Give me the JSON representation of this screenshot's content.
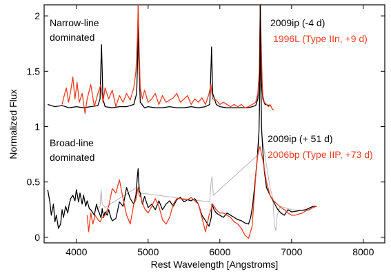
{
  "chart_data": {
    "type": "line",
    "title": "",
    "xlabel": "Rest Wavelength [Angstroms]",
    "ylabel": "Normalized Flux",
    "xlim": [
      3550,
      8300
    ],
    "ylim": [
      -0.05,
      2.1
    ],
    "xticks": [
      4000,
      5000,
      6000,
      7000,
      8000
    ],
    "yticks": [
      0,
      0.5,
      1,
      1.5,
      2
    ],
    "ytick_labels": [
      "0",
      "0.5",
      "1",
      "1.5",
      "2"
    ],
    "grid": false,
    "colors": {
      "black": "#000000",
      "red": "#ee3b1f",
      "gray": "#b5b5b5"
    },
    "annotations": [
      {
        "id": "narrow",
        "lines": [
          "Narrow-line",
          "dominated"
        ],
        "color": "#000000"
      },
      {
        "id": "broad",
        "lines": [
          "Broad-line",
          "dominated"
        ],
        "color": "#000000"
      },
      {
        "id": "top-black",
        "lines": [
          "2009ip (-4 d)"
        ],
        "color": "#000000"
      },
      {
        "id": "top-red",
        "lines": [
          "1996L (Type IIn, +9 d)"
        ],
        "color": "#ee3b1f"
      },
      {
        "id": "bot-black",
        "lines": [
          "2009ip (+ 51 d)"
        ],
        "color": "#000000"
      },
      {
        "id": "bot-red",
        "lines": [
          "2006bp (Type IIP, +73 d)"
        ],
        "color": "#ee3b1f"
      }
    ],
    "series": [
      {
        "color": "#000000",
        "x": [
          3600,
          3700,
          3800,
          3900,
          4000,
          4100,
          4200,
          4300,
          4330,
          4340,
          4350,
          4370,
          4400,
          4500,
          4600,
          4700,
          4800,
          4840,
          4855,
          4862,
          4870,
          4890,
          4950,
          5000,
          5100,
          5200,
          5300,
          5400,
          5500,
          5600,
          5700,
          5800,
          5860,
          5875,
          5885,
          5900,
          5950,
          6000,
          6100,
          6200,
          6300,
          6400,
          6500,
          6530,
          6550,
          6560,
          6563,
          6568,
          6580,
          6600,
          6630,
          6700
        ],
        "y": [
          1.2,
          1.18,
          1.19,
          1.17,
          1.18,
          1.17,
          1.18,
          1.19,
          1.25,
          1.52,
          1.74,
          1.25,
          1.18,
          1.17,
          1.18,
          1.18,
          1.2,
          1.3,
          1.65,
          2.1,
          1.6,
          1.22,
          1.17,
          1.18,
          1.17,
          1.17,
          1.18,
          1.17,
          1.17,
          1.18,
          1.17,
          1.18,
          1.2,
          1.5,
          1.72,
          1.3,
          1.2,
          1.18,
          1.17,
          1.17,
          1.17,
          1.17,
          1.19,
          1.25,
          1.45,
          1.75,
          2.1,
          1.9,
          1.4,
          1.25,
          1.2,
          1.19
        ]
      },
      {
        "color": "#ee3b1f",
        "x": [
          3800,
          3830,
          3860,
          3890,
          3920,
          3950,
          3980,
          4010,
          4040,
          4080,
          4120,
          4150,
          4200,
          4250,
          4300,
          4340,
          4370,
          4400,
          4450,
          4500,
          4550,
          4600,
          4650,
          4700,
          4750,
          4800,
          4830,
          4850,
          4862,
          4875,
          4890,
          4920,
          4950,
          5000,
          5050,
          5100,
          5150,
          5200,
          5250,
          5300,
          5350,
          5400,
          5450,
          5500,
          5550,
          5600,
          5650,
          5700,
          5750,
          5800,
          5850,
          5875,
          5885,
          5900,
          5950,
          6000,
          6050,
          6100,
          6150,
          6200,
          6250,
          6300,
          6350,
          6400,
          6450,
          6500,
          6530,
          6550,
          6563,
          6575,
          6590,
          6600,
          6620,
          6650,
          6680,
          6700,
          6730,
          6750
        ],
        "y": [
          1.2,
          1.28,
          1.35,
          1.22,
          1.32,
          1.45,
          1.25,
          1.4,
          1.22,
          1.3,
          1.12,
          1.25,
          1.38,
          1.18,
          1.3,
          1.38,
          1.22,
          1.35,
          1.25,
          1.33,
          1.18,
          1.28,
          1.22,
          1.3,
          1.24,
          1.35,
          1.5,
          1.8,
          2.1,
          1.7,
          1.35,
          1.25,
          1.33,
          1.22,
          1.25,
          1.3,
          1.2,
          1.28,
          1.22,
          1.24,
          1.26,
          1.3,
          1.22,
          1.25,
          1.28,
          1.2,
          1.25,
          1.22,
          1.26,
          1.2,
          1.3,
          1.38,
          1.33,
          1.25,
          1.24,
          1.2,
          1.22,
          1.2,
          1.18,
          1.2,
          1.18,
          1.2,
          1.17,
          1.18,
          1.2,
          1.22,
          1.3,
          1.5,
          2.1,
          1.8,
          1.4,
          1.28,
          1.22,
          1.2,
          1.18,
          1.2,
          1.16,
          1.15
        ]
      },
      {
        "color": "#b5b5b5",
        "x": [
          4300,
          4330,
          4345,
          4360,
          4400,
          4840,
          4855,
          4862,
          4870,
          4890,
          5860,
          5878,
          5890,
          5910,
          6540,
          6556,
          6563,
          6570,
          6590,
          6700,
          6740,
          6760,
          6780,
          6800,
          6840,
          7000,
          7200,
          7300,
          7350
        ],
        "y": [
          0.25,
          0.28,
          0.43,
          0.3,
          0.27,
          0.45,
          0.6,
          0.62,
          0.5,
          0.4,
          0.32,
          0.5,
          0.55,
          0.38,
          0.75,
          1.3,
          2.1,
          1.5,
          0.9,
          0.45,
          0.35,
          0.12,
          0.06,
          0.2,
          0.28,
          0.25,
          0.24,
          0.27,
          0.28
        ]
      },
      {
        "color": "#000000",
        "x": [
          3600,
          3630,
          3650,
          3680,
          3700,
          3720,
          3750,
          3780,
          3800,
          3820,
          3850,
          3880,
          3900,
          3920,
          3950,
          3980,
          4000,
          4030,
          4050,
          4080,
          4100,
          4130,
          4150,
          4180,
          4200,
          4230,
          4250,
          4280,
          4300,
          4320,
          4340,
          4350,
          4360,
          4380,
          4400,
          4430,
          4450,
          4480,
          4500,
          4550,
          4600,
          4650,
          4700,
          4750,
          4800,
          4830,
          4850,
          4862,
          4875,
          4890,
          4920,
          4950,
          5000,
          5050,
          5100,
          5150,
          5200,
          5250,
          5300,
          5350,
          5400,
          5450,
          5500,
          5550,
          5600,
          5650,
          5700,
          5750,
          5800,
          5850,
          5880,
          5890,
          5920,
          5950,
          6000,
          6050,
          6100,
          6150,
          6200,
          6250,
          6300,
          6350,
          6400,
          6430,
          6460,
          6490,
          6520,
          6545,
          6555,
          6563,
          6570,
          6580,
          6600,
          6620,
          6650,
          6700,
          6750,
          6800,
          6850,
          6900,
          6950,
          7000,
          7100,
          7200,
          7300,
          7350
        ],
        "y": [
          0.43,
          0.32,
          0.2,
          0.3,
          0.14,
          0.2,
          0.08,
          0.12,
          0.25,
          0.18,
          0.28,
          0.22,
          0.3,
          0.35,
          0.38,
          0.33,
          0.43,
          0.32,
          0.4,
          0.3,
          0.38,
          0.28,
          0.33,
          0.26,
          0.25,
          0.22,
          0.2,
          0.3,
          0.25,
          0.22,
          0.18,
          0.2,
          0.26,
          0.18,
          0.23,
          0.2,
          0.25,
          0.18,
          0.15,
          0.17,
          0.32,
          0.28,
          0.45,
          0.35,
          0.3,
          0.38,
          0.55,
          0.62,
          0.42,
          0.4,
          0.3,
          0.37,
          0.27,
          0.3,
          0.25,
          0.33,
          0.25,
          0.3,
          0.33,
          0.28,
          0.34,
          0.36,
          0.32,
          0.34,
          0.33,
          0.35,
          0.3,
          0.2,
          0.15,
          0.1,
          0.18,
          0.3,
          0.25,
          0.22,
          0.2,
          0.18,
          0.22,
          0.2,
          0.18,
          0.16,
          0.15,
          0.13,
          0.12,
          0.18,
          0.3,
          0.5,
          0.7,
          0.95,
          1.25,
          2.1,
          1.5,
          1.0,
          0.78,
          0.6,
          0.45,
          0.38,
          0.32,
          0.26,
          0.22,
          0.2,
          0.25,
          0.23,
          0.24,
          0.25,
          0.28,
          0.28
        ]
      },
      {
        "color": "#ee3b1f",
        "x": [
          4150,
          4170,
          4200,
          4230,
          4260,
          4300,
          4330,
          4360,
          4400,
          4450,
          4500,
          4550,
          4600,
          4650,
          4700,
          4750,
          4800,
          4830,
          4850,
          4862,
          4875,
          4900,
          4950,
          5000,
          5050,
          5100,
          5150,
          5200,
          5250,
          5300,
          5350,
          5400,
          5450,
          5500,
          5550,
          5600,
          5650,
          5700,
          5750,
          5800,
          5850,
          5900,
          5950,
          6000,
          6050,
          6100,
          6150,
          6200,
          6250,
          6300,
          6350,
          6400,
          6450,
          6500,
          6530,
          6560,
          6600,
          6650,
          6700,
          6750,
          6800,
          6850,
          6900,
          6950,
          7000,
          7050,
          7100,
          7150,
          7200,
          7250,
          7300,
          7350
        ],
        "y": [
          0.2,
          0.05,
          0.22,
          0.12,
          0.2,
          0.16,
          0.14,
          0.18,
          0.2,
          0.28,
          0.44,
          0.4,
          0.52,
          0.35,
          0.2,
          0.12,
          0.3,
          0.34,
          0.42,
          0.45,
          0.38,
          0.36,
          0.26,
          0.22,
          0.28,
          0.35,
          0.28,
          0.16,
          0.12,
          0.18,
          0.3,
          0.35,
          0.35,
          0.34,
          0.34,
          0.36,
          0.33,
          0.3,
          0.18,
          0.05,
          0.2,
          0.3,
          0.25,
          0.22,
          0.22,
          0.2,
          0.18,
          0.14,
          0.12,
          0.08,
          0.02,
          -0.01,
          0.1,
          0.55,
          0.75,
          0.82,
          0.7,
          0.5,
          0.38,
          0.33,
          0.3,
          0.27,
          0.25,
          0.22,
          0.2,
          0.2,
          0.21,
          0.22,
          0.24,
          0.25,
          0.27,
          0.28
        ]
      }
    ]
  }
}
